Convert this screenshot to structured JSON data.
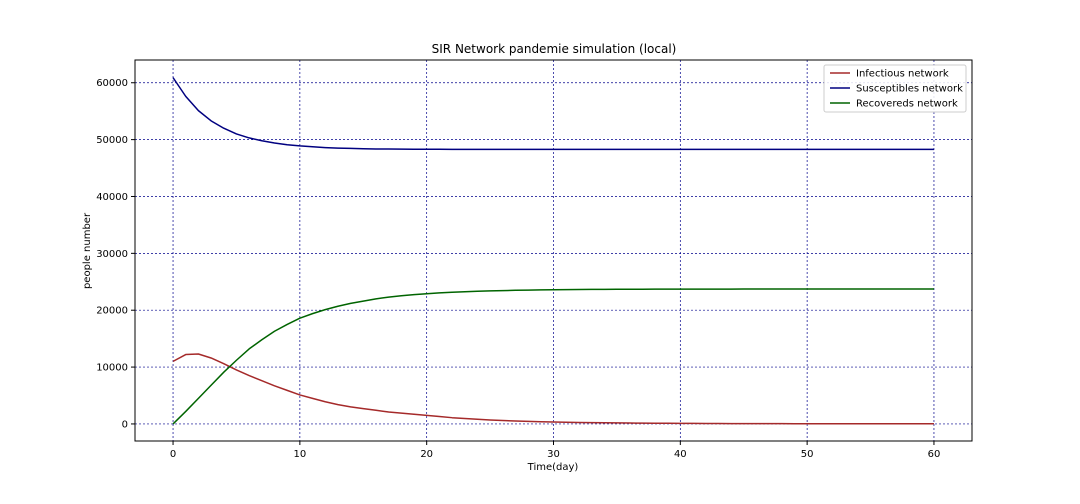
{
  "chart_data": {
    "type": "line",
    "title": "SIR Network pandemie simulation (local)",
    "xlabel": "Time(day)",
    "ylabel": "people number",
    "xlim": [
      -3,
      63
    ],
    "ylim": [
      -3000,
      64000
    ],
    "xticks": [
      0,
      10,
      20,
      30,
      40,
      50,
      60
    ],
    "yticks": [
      0,
      10000,
      20000,
      30000,
      40000,
      50000,
      60000
    ],
    "grid": true,
    "grid_color": "#00008b",
    "legend_position": "top-right",
    "x": [
      0,
      1,
      2,
      3,
      4,
      5,
      6,
      7,
      8,
      9,
      10,
      11,
      12,
      13,
      14,
      15,
      16,
      17,
      18,
      19,
      20,
      21,
      22,
      23,
      24,
      25,
      26,
      27,
      28,
      29,
      30,
      31,
      32,
      33,
      34,
      35,
      36,
      37,
      38,
      39,
      40,
      41,
      42,
      43,
      44,
      45,
      46,
      47,
      48,
      49,
      50,
      51,
      52,
      53,
      54,
      55,
      56,
      57,
      58,
      59,
      60
    ],
    "series": [
      {
        "name": "Infectious network",
        "color": "#a52a2a",
        "values": [
          11000,
          12200,
          12300,
          11600,
          10600,
          9500,
          8500,
          7600,
          6700,
          5900,
          5100,
          4500,
          3900,
          3400,
          3000,
          2700,
          2400,
          2100,
          1900,
          1700,
          1500,
          1300,
          1100,
          950,
          820,
          700,
          600,
          520,
          450,
          390,
          340,
          300,
          260,
          230,
          200,
          180,
          160,
          140,
          120,
          110,
          100,
          90,
          80,
          70,
          65,
          60,
          55,
          50,
          45,
          42,
          40,
          38,
          36,
          34,
          32,
          30,
          29,
          28,
          27,
          26,
          25
        ]
      },
      {
        "name": "Susceptibles network",
        "color": "#000080",
        "values": [
          60900,
          57600,
          55100,
          53300,
          52000,
          51000,
          50300,
          49800,
          49400,
          49100,
          48900,
          48750,
          48600,
          48500,
          48450,
          48400,
          48360,
          48340,
          48320,
          48310,
          48300,
          48295,
          48290,
          48287,
          48285,
          48283,
          48282,
          48281,
          48280,
          48280,
          48280,
          48280,
          48280,
          48280,
          48280,
          48280,
          48280,
          48280,
          48280,
          48280,
          48280,
          48280,
          48280,
          48280,
          48280,
          48280,
          48280,
          48280,
          48280,
          48280,
          48280,
          48280,
          48280,
          48280,
          48280,
          48280,
          48280,
          48280,
          48280,
          48280,
          48280
        ]
      },
      {
        "name": "Recovereds network",
        "color": "#006400",
        "values": [
          0,
          2200,
          4500,
          6800,
          9100,
          11200,
          13200,
          14800,
          16300,
          17500,
          18600,
          19400,
          20100,
          20700,
          21200,
          21600,
          22000,
          22300,
          22550,
          22750,
          22900,
          23050,
          23150,
          23250,
          23330,
          23400,
          23450,
          23500,
          23540,
          23570,
          23600,
          23620,
          23640,
          23660,
          23670,
          23680,
          23690,
          23695,
          23700,
          23705,
          23710,
          23712,
          23714,
          23716,
          23718,
          23720,
          23721,
          23722,
          23723,
          23724,
          23725,
          23726,
          23727,
          23728,
          23729,
          23730,
          23730,
          23730,
          23730,
          23730,
          23730
        ]
      }
    ]
  }
}
